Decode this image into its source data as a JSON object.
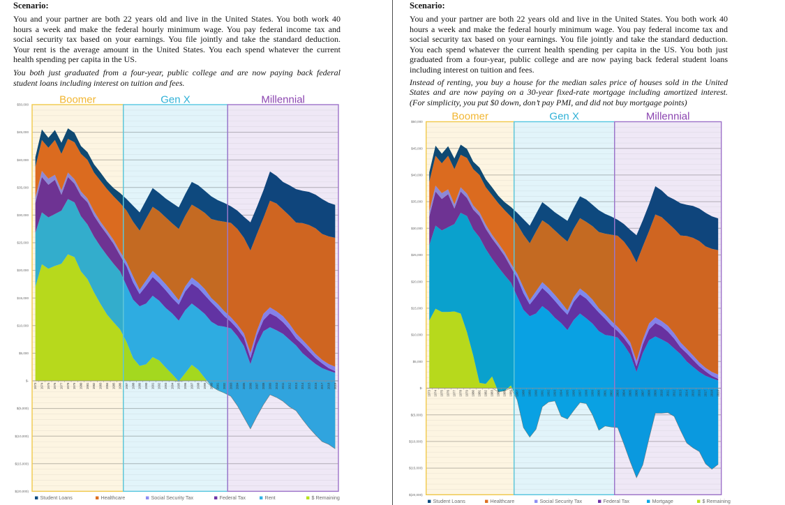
{
  "pages": [
    {
      "heading": "Scenario:",
      "paragraph_lines": [
        "You and your partner are both 22 years old and live in the United States. You both work 40",
        "hours a week and make the federal hourly minimum wage. You pay federal income tax and",
        "social security tax based on your earnings. You file jointly and take the standard deduction.",
        "Your rent is the average amount in the United States. You each spend whatever the current",
        "health spending per capita in the US."
      ],
      "italic_lines": [
        "You both just graduated from a four-year, public college and are now paying back federal",
        "student loans including interest on tuition and fees."
      ]
    },
    {
      "heading": "Scenario:",
      "paragraph_lines": [
        "You and your partner are both 22 years old and live in the United States. You both work 40",
        "hours a week and make the federal hourly minimum wage. You pay federal income tax and",
        "social security tax based on your earnings. You file jointly and take the standard deduction.",
        "You each spend whatever the current health spending per capita in the US. You both just",
        "graduated from a four-year, public college and are now paying back federal student loans",
        "including interest on tuition and fees."
      ],
      "italic_lines": [
        "Instead of renting, you buy a house for the median sales price of houses sold in the United",
        "States and are now paying on a 30-year fixed-rate mortgage including amortized interest.",
        "(For simplicity, you put $0 down, don’t pay PMI, and did not buy mortgage points)"
      ]
    }
  ],
  "chart_data": [
    {
      "type": "area",
      "stacked": true,
      "title": "",
      "xlabel": "",
      "ylabel": "",
      "ylim": [
        -20000,
        50000
      ],
      "yticks": [
        50000,
        45000,
        40000,
        35000,
        30000,
        25000,
        20000,
        15000,
        10000,
        5000,
        0,
        -5000,
        -10000,
        -15000,
        -20000
      ],
      "ytick_labels": [
        "$50,000",
        "$45,000",
        "$40,000",
        "$35,000",
        "$30,000",
        "$25,000",
        "$20,000",
        "$15,000",
        "$10,000",
        "$5,000",
        "$-",
        "$(5,000)",
        "$(10,000)",
        "$(15,000)",
        "$(20,000)"
      ],
      "grid": true,
      "legend": "bottom",
      "regions": [
        {
          "label": "Boomer",
          "from": "1973",
          "to": "1986",
          "color": "#f2b632",
          "border": "#f1c94a",
          "background": "#fdf5e2"
        },
        {
          "label": "Gen X",
          "from": "1987",
          "to": "2002",
          "color": "#2eb0d6",
          "border": "#55c6e0",
          "background": "#e2f4fa"
        },
        {
          "label": "Millennial",
          "from": "2003",
          "to": "2019",
          "color": "#8b44b0",
          "border": "#9d72c9",
          "background": "#efe8f6"
        }
      ],
      "categories": [
        "1973",
        "1974",
        "1975",
        "1976",
        "1977",
        "1978",
        "1979",
        "1980",
        "1981",
        "1982",
        "1983",
        "1984",
        "1985",
        "1986",
        "1987",
        "1988",
        "1989",
        "1990",
        "1991",
        "1992",
        "1993",
        "1994",
        "1995",
        "1996",
        "1997",
        "1998",
        "1999",
        "2000",
        "2001",
        "2002",
        "2003",
        "2004",
        "2005",
        "2006",
        "2007",
        "2008",
        "2009",
        "2010",
        "2011",
        "2012",
        "2013",
        "2014",
        "2015",
        "2016",
        "2017",
        "2018",
        "2019"
      ],
      "series": [
        {
          "name": "Student Loans",
          "color": "#0f4c81",
          "values": [
            1800,
            1900,
            1800,
            1800,
            2000,
            1900,
            1700,
            1400,
            1400,
            1500,
            1500,
            1400,
            1500,
            1800,
            2100,
            2900,
            3300,
            3300,
            3400,
            3300,
            3400,
            3700,
            3900,
            3900,
            4100,
            4200,
            4000,
            4100,
            3700,
            3400,
            3000,
            3300,
            3800,
            5100,
            4900,
            5000,
            5300,
            5000,
            5000,
            5500,
            6050,
            5850,
            6000,
            6100,
            6300,
            6100,
            5950
          ]
        },
        {
          "name": "Healthcare",
          "color": "#dd6f22",
          "values": [
            5500,
            5600,
            5600,
            6300,
            6600,
            6100,
            6700,
            6800,
            7000,
            7000,
            7400,
            7500,
            7900,
            8800,
            9300,
            9900,
            10700,
            11200,
            11600,
            11900,
            12100,
            12400,
            12900,
            12800,
            13200,
            13400,
            13800,
            14300,
            15100,
            16200,
            17100,
            17300,
            17300,
            18500,
            17500,
            17350,
            19300,
            19500,
            19300,
            19600,
            20050,
            21150,
            22050,
            22750,
            22800,
            23100,
            23350
          ]
        },
        {
          "name": "Social Security Tax",
          "color": "#8e8ef2",
          "values": [
            1000,
            1100,
            1100,
            900,
            800,
            800,
            800,
            800,
            700,
            800,
            700,
            700,
            700,
            700,
            800,
            1100,
            800,
            1000,
            1100,
            1100,
            1100,
            1100,
            800,
            900,
            1100,
            1000,
            1100,
            800,
            900,
            900,
            800,
            800,
            800,
            1000,
            900,
            1150,
            1100,
            1000,
            1100,
            1000,
            950,
            850,
            850,
            750,
            650,
            750,
            800
          ]
        },
        {
          "name": "Federal Tax",
          "color": "#6f35a6",
          "values": [
            5400,
            6400,
            5900,
            6200,
            2900,
            4000,
            3400,
            3700,
            4000,
            3800,
            3800,
            3800,
            3600,
            2900,
            3500,
            3100,
            2200,
            3200,
            3400,
            3200,
            3200,
            2800,
            2900,
            3400,
            3600,
            3700,
            3400,
            3500,
            3000,
            1900,
            1200,
            1300,
            1500,
            1050,
            1600,
            2000,
            2500,
            2450,
            2100,
            1850,
            1250,
            1550,
            1300,
            1050,
            850,
            450,
            300
          ]
        },
        {
          "name": "Rent",
          "color": "#33b4e6",
          "values": [
            9800,
            9400,
            9300,
            9400,
            9600,
            10000,
            9900,
            10000,
            9900,
            10100,
            10400,
            10700,
            10600,
            10500,
            10200,
            10600,
            10800,
            11000,
            11100,
            10800,
            10800,
            11000,
            11000,
            11400,
            11100,
            11100,
            11600,
            11700,
            11700,
            12000,
            12300,
            12600,
            12900,
            11750,
            13000,
            13300,
            12200,
            12150,
            12200,
            12150,
            11800,
            12000,
            12500,
            12850,
            13300,
            13350,
            13750
          ]
        },
        {
          "name": "$ Remaining",
          "color": "#b9e21f",
          "values": [
            17000,
            21100,
            20300,
            20800,
            21200,
            22900,
            22400,
            19800,
            18400,
            16000,
            13900,
            12000,
            10600,
            9300,
            7000,
            4100,
            2700,
            3000,
            4300,
            3700,
            2400,
            1200,
            -100,
            1400,
            2900,
            2000,
            500,
            -1000,
            -1700,
            -2200,
            -2800,
            -4500,
            -6600,
            -8700,
            -6400,
            -4300,
            -2500,
            -3000,
            -3700,
            -4700,
            -5400,
            -7000,
            -8500,
            -9800,
            -11000,
            -11500,
            -12300
          ]
        }
      ]
    },
    {
      "type": "area",
      "stacked": true,
      "title": "",
      "xlabel": "",
      "ylabel": "",
      "ylim": [
        -20000,
        50000
      ],
      "yticks": [
        50000,
        45000,
        40000,
        35000,
        30000,
        25000,
        20000,
        15000,
        10000,
        5000,
        0,
        -5000,
        -10000,
        -15000,
        -20000
      ],
      "ytick_labels": [
        "$50,000",
        "$45,000",
        "$40,000",
        "$35,000",
        "$30,000",
        "$25,000",
        "$20,000",
        "$15,000",
        "$10,000",
        "$5,000",
        "$-",
        "$(5,000)",
        "$(10,000)",
        "$(15,000)",
        "$(20,000)"
      ],
      "grid": true,
      "legend": "bottom",
      "regions": [
        {
          "label": "Boomer",
          "from": "1973",
          "to": "1986",
          "color": "#f2b632",
          "border": "#f1c94a",
          "background": "#fdf5e2"
        },
        {
          "label": "Gen X",
          "from": "1987",
          "to": "2002",
          "color": "#2eb0d6",
          "border": "#55c6e0",
          "background": "#e2f4fa"
        },
        {
          "label": "Millennial",
          "from": "2003",
          "to": "2019",
          "color": "#8b44b0",
          "border": "#9d72c9",
          "background": "#efe8f6"
        }
      ],
      "categories": [
        "1973",
        "1974",
        "1975",
        "1976",
        "1977",
        "1978",
        "1979",
        "1980",
        "1981",
        "1982",
        "1983",
        "1984",
        "1985",
        "1986",
        "1987",
        "1988",
        "1989",
        "1990",
        "1991",
        "1992",
        "1993",
        "1994",
        "1995",
        "1996",
        "1997",
        "1998",
        "1999",
        "2000",
        "2001",
        "2002",
        "2003",
        "2004",
        "2005",
        "2006",
        "2007",
        "2008",
        "2009",
        "2010",
        "2011",
        "2012",
        "2013",
        "2014",
        "2015",
        "2016",
        "2017",
        "2018",
        "2019"
      ],
      "series": [
        {
          "name": "Student Loans",
          "color": "#0f4c81",
          "values": [
            1800,
            1900,
            1800,
            1800,
            2000,
            1900,
            1700,
            1400,
            1400,
            1500,
            1500,
            1400,
            1500,
            1800,
            2100,
            2900,
            3300,
            3300,
            3400,
            3300,
            3400,
            3700,
            3900,
            3900,
            4100,
            4200,
            4000,
            4100,
            3700,
            3400,
            3000,
            3300,
            3800,
            5100,
            4900,
            5000,
            5300,
            5000,
            5000,
            5500,
            6050,
            5850,
            6000,
            6100,
            6300,
            6100,
            5950
          ]
        },
        {
          "name": "Healthcare",
          "color": "#dd6f22",
          "values": [
            5500,
            5600,
            5600,
            6300,
            6600,
            6100,
            6700,
            6800,
            7000,
            7000,
            7400,
            7500,
            7900,
            8800,
            9300,
            9900,
            10700,
            11200,
            11600,
            11900,
            12100,
            12400,
            12900,
            12800,
            13200,
            13400,
            13800,
            14300,
            15100,
            16200,
            17100,
            17300,
            17300,
            18500,
            17500,
            17350,
            19300,
            19500,
            19300,
            19600,
            20050,
            21150,
            22050,
            22750,
            22800,
            23100,
            23350
          ]
        },
        {
          "name": "Social Security Tax",
          "color": "#8e8ef2",
          "values": [
            1000,
            1100,
            1100,
            900,
            800,
            800,
            800,
            800,
            700,
            800,
            700,
            700,
            700,
            700,
            800,
            1100,
            800,
            1000,
            1100,
            1100,
            1100,
            1100,
            800,
            900,
            1100,
            1000,
            1100,
            800,
            900,
            900,
            800,
            800,
            800,
            1000,
            900,
            1150,
            1100,
            1000,
            1100,
            1000,
            950,
            850,
            850,
            750,
            650,
            750,
            800
          ]
        },
        {
          "name": "Federal Tax",
          "color": "#6f35a6",
          "values": [
            5400,
            6400,
            5900,
            6200,
            2900,
            4000,
            3400,
            3700,
            4000,
            3800,
            3800,
            3800,
            3600,
            2900,
            3500,
            3100,
            2200,
            3200,
            3400,
            3200,
            3200,
            2800,
            2900,
            3400,
            3600,
            3700,
            3400,
            3500,
            3000,
            1900,
            1200,
            1300,
            1500,
            1050,
            1600,
            2000,
            2500,
            2450,
            2100,
            1850,
            1250,
            1550,
            1300,
            1050,
            850,
            450,
            300
          ]
        },
        {
          "name": "Mortgage",
          "color": "#0aa8e8",
          "values": [
            14100,
            15600,
            15300,
            15900,
            16400,
            18900,
            21800,
            23700,
            27300,
            25300,
            22100,
            23400,
            21700,
            19300,
            19400,
            22100,
            22700,
            21700,
            18900,
            17100,
            15600,
            17500,
            16700,
            17000,
            16700,
            16000,
            17100,
            18600,
            17100,
            17100,
            16900,
            18600,
            20100,
            19850,
            21000,
            18400,
            14400,
            13850,
            13100,
            12750,
            14300,
            15300,
            15200,
            14950,
            16500,
            17050,
            15750
          ]
        },
        {
          "name": "$ Remaining",
          "color": "#b9e21f",
          "values": [
            12700,
            14900,
            14300,
            14300,
            14400,
            14000,
            10500,
            6100,
            1000,
            800,
            2200,
            -700,
            -500,
            500,
            -2200,
            -7400,
            -9200,
            -7700,
            -3500,
            -2600,
            -2400,
            -5300,
            -5800,
            -4200,
            -2700,
            -2900,
            -5000,
            -7900,
            -7100,
            -7300,
            -7400,
            -10500,
            -13800,
            -16800,
            -14400,
            -9400,
            -4700,
            -4700,
            -4600,
            -5300,
            -7900,
            -10300,
            -11200,
            -11900,
            -14200,
            -15200,
            -14300
          ]
        }
      ]
    }
  ]
}
